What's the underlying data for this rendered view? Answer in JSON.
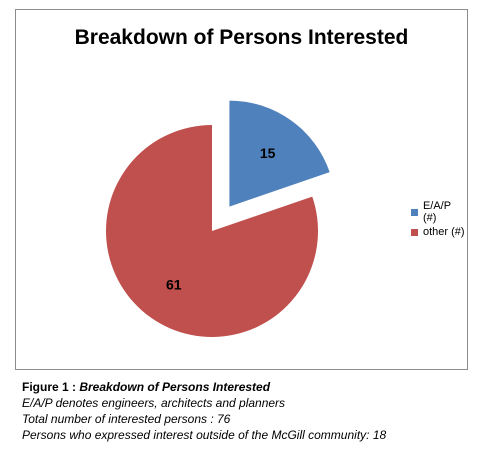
{
  "chart_data": {
    "type": "pie",
    "title": "Breakdown of Persons Interested",
    "slices": [
      {
        "label": "E/A/P (#)",
        "value": 15,
        "color": "#4f81bd",
        "exploded": true
      },
      {
        "label": "other (#)",
        "value": 61,
        "color": "#c0504d",
        "exploded": false
      }
    ],
    "legend_position": "right"
  },
  "caption": {
    "figure_label": "Figure 1 : ",
    "figure_title": "Breakdown of Persons Interested",
    "lines": [
      "E/A/P denotes engineers, architects and planners",
      "Total number of interested persons : 76",
      "Persons who expressed interest outside of the McGill community: 18"
    ]
  }
}
